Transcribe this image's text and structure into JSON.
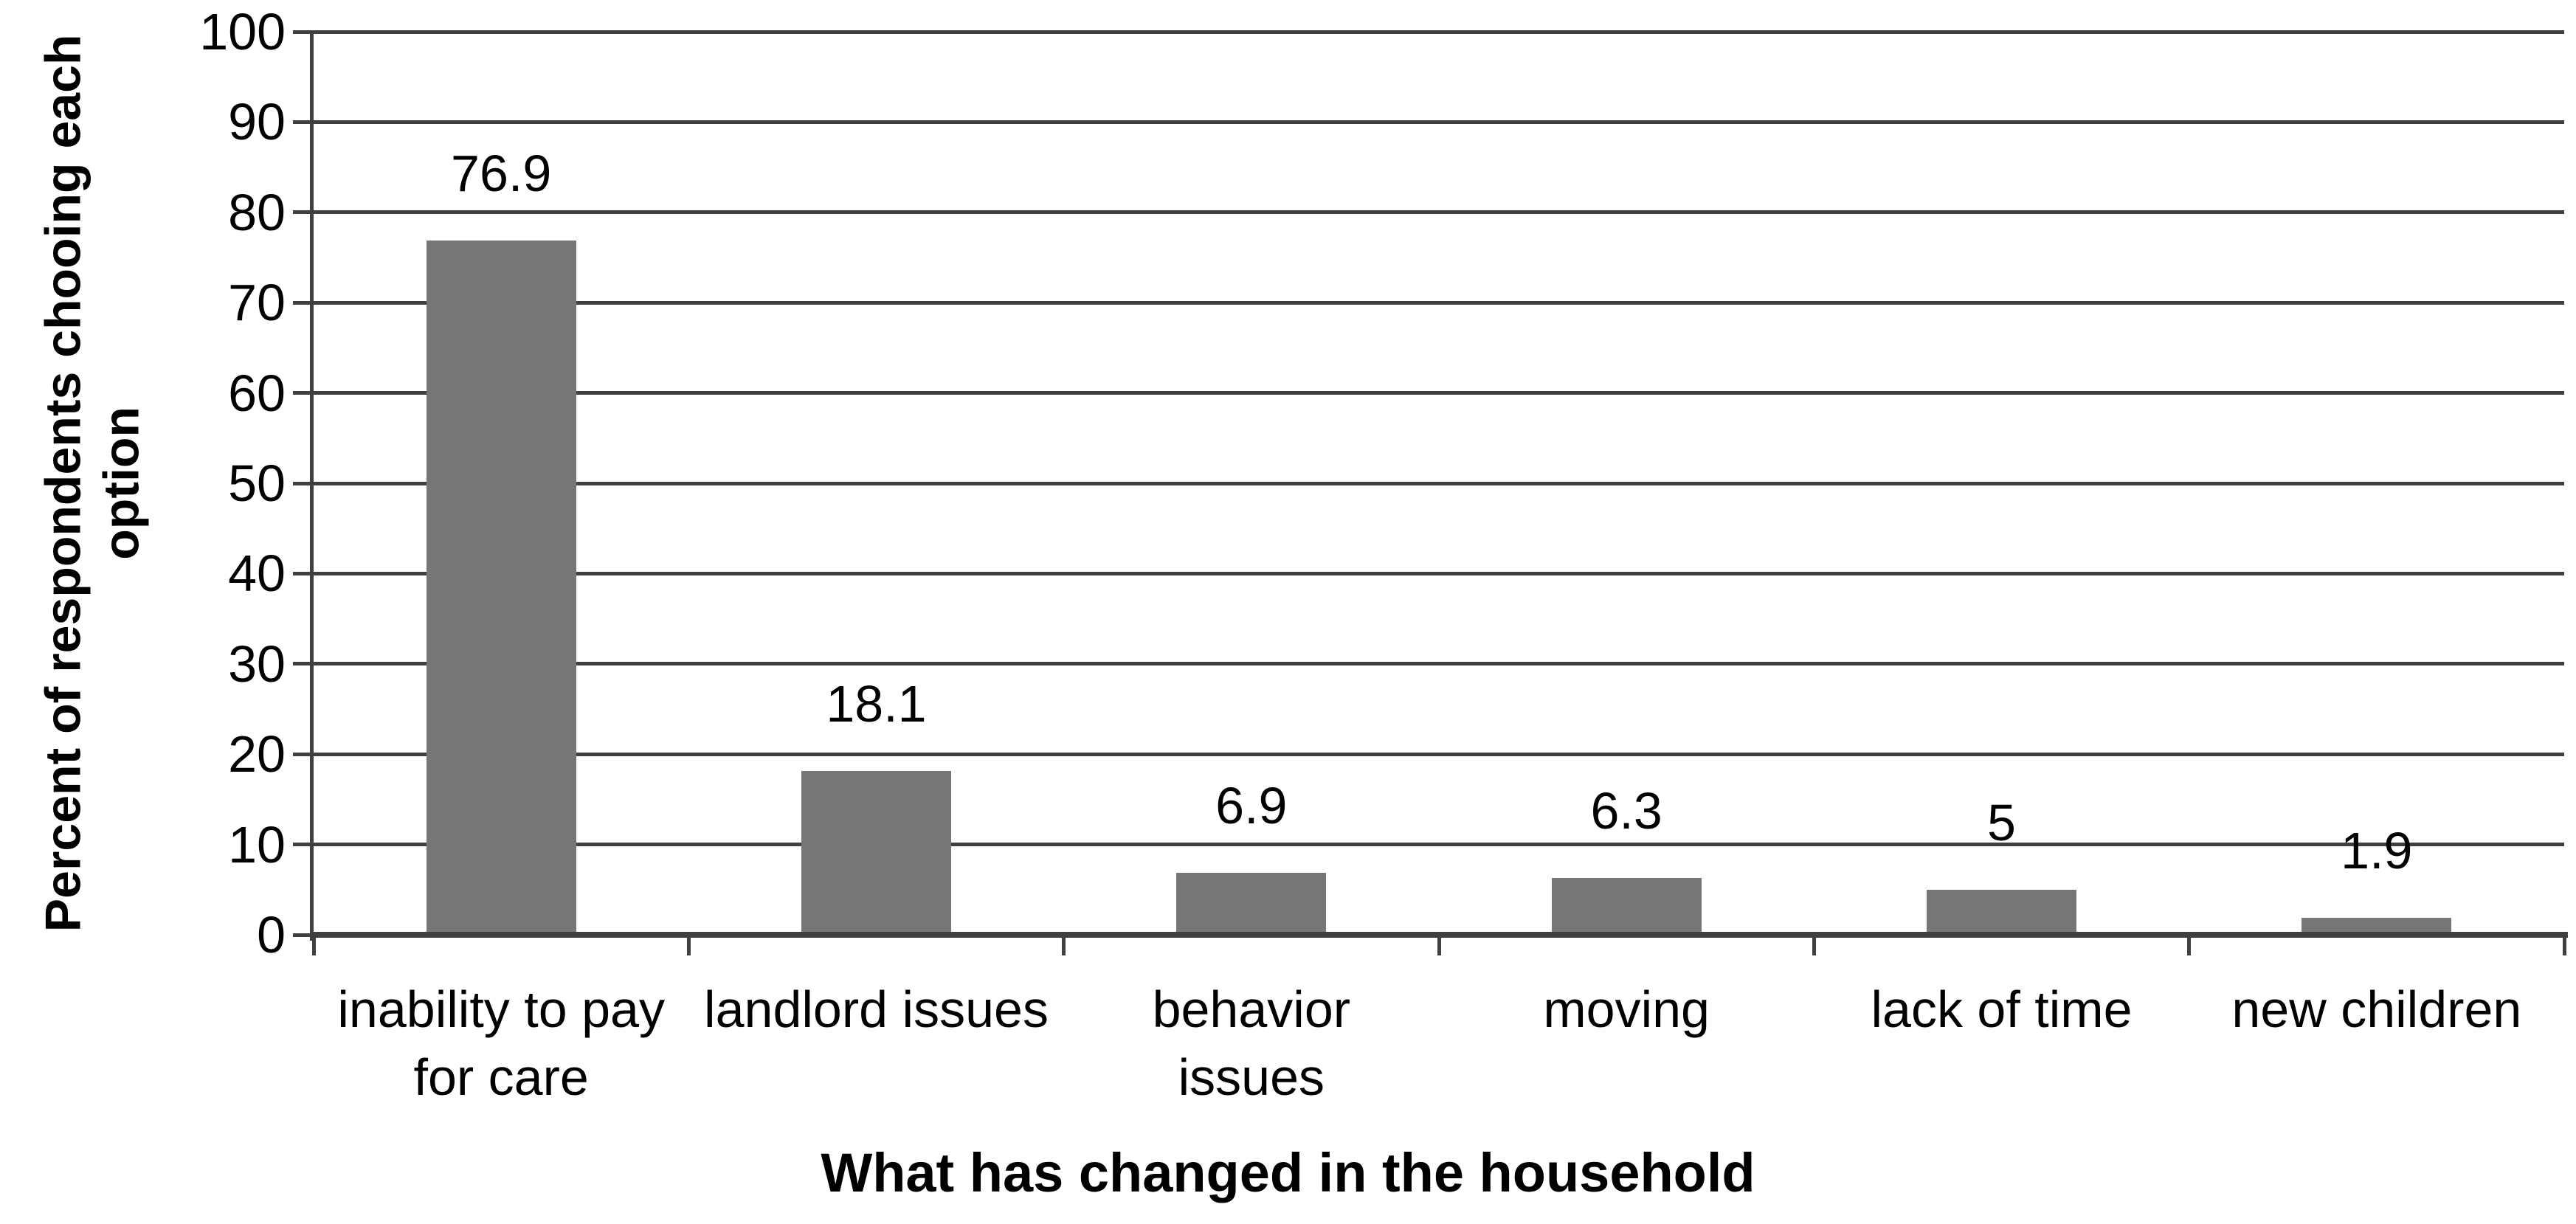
{
  "chart_data": {
    "type": "bar",
    "title": "",
    "categories": [
      "inability to pay for care",
      "landlord issues",
      "behavior issues",
      "moving",
      "lack of time",
      "new children"
    ],
    "category_lines": [
      [
        "inability to pay",
        "for care"
      ],
      [
        "landlord issues"
      ],
      [
        "behavior",
        "issues"
      ],
      [
        "moving"
      ],
      [
        "lack of time"
      ],
      [
        "new children"
      ]
    ],
    "values": [
      76.9,
      18.1,
      6.9,
      6.3,
      5,
      1.9
    ],
    "data_labels": [
      "76.9",
      "18.1",
      "6.9",
      "6.3",
      "5",
      "1.9"
    ],
    "xlabel": "What has changed in the household",
    "ylabel": "Percent of respondents chooing each option",
    "ylabel_lines": [
      "Percent of respondents chooing each",
      "option"
    ],
    "ylim": [
      0,
      100
    ],
    "ytick_step": 10,
    "ytick_labels": [
      "0",
      "10",
      "20",
      "30",
      "40",
      "50",
      "60",
      "70",
      "80",
      "90",
      "100"
    ],
    "grid": "horizontal",
    "legend": "none",
    "colors": {
      "bar": "#767676",
      "gridline": "#3f3f3f",
      "axis": "#3f3f3f",
      "text": "#000000",
      "background": "#ffffff"
    }
  }
}
